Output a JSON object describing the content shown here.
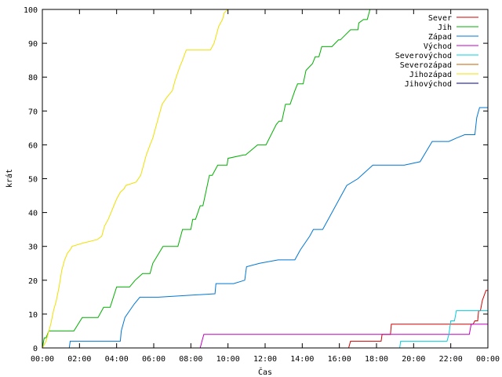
{
  "chart_data": {
    "type": "line",
    "title": "",
    "xlabel": "Čas",
    "ylabel": "krát",
    "xlim": [
      "00:00",
      "24:00"
    ],
    "ylim": [
      0,
      100
    ],
    "grid": false,
    "legend": "top-right",
    "x_ticks": [
      "00:00",
      "02:00",
      "04:00",
      "06:00",
      "08:00",
      "10:00",
      "12:00",
      "14:00",
      "16:00",
      "18:00",
      "20:00",
      "22:00",
      "00:00"
    ],
    "y_ticks": [
      "0",
      "10",
      "20",
      "30",
      "40",
      "50",
      "60",
      "70",
      "80",
      "90",
      "100"
    ],
    "series": [
      {
        "name": "Sever",
        "color": "#d40000",
        "x": [
          0,
          16.5,
          16.6,
          18.25,
          18.3,
          18.75,
          18.8,
          23.2,
          23.3,
          23.45,
          23.5,
          23.6,
          23.7,
          23.9,
          24.0
        ],
        "y": [
          0,
          0,
          2,
          2,
          4,
          4,
          7,
          7,
          8,
          8,
          11,
          11,
          14,
          17,
          17
        ]
      },
      {
        "name": "Jih",
        "color": "#00b000",
        "x": [
          0,
          0.1,
          0.2,
          0.35,
          0.55,
          1.7,
          2.15,
          3.0,
          3.3,
          3.65,
          4.0,
          4.7,
          5.0,
          5.4,
          5.8,
          5.95,
          6.5,
          7.3,
          7.55,
          8.0,
          8.1,
          8.25,
          8.5,
          8.65,
          9.0,
          9.15,
          9.45,
          9.65,
          9.95,
          10.0,
          10.85,
          10.95,
          11.6,
          11.7,
          11.9,
          12.05,
          12.6,
          12.75,
          12.9,
          13.1,
          13.35,
          13.6,
          13.75,
          14.05,
          14.2,
          14.55,
          14.7,
          14.9,
          15.05,
          15.4,
          15.6,
          15.95,
          16.05,
          16.6,
          16.8,
          17.0,
          17.05,
          17.3,
          17.5,
          17.65,
          17.9,
          18.0,
          19.0,
          24.0
        ],
        "y": [
          0,
          3,
          3,
          5,
          5,
          5,
          9,
          9,
          12,
          12,
          18,
          18,
          20,
          22,
          22,
          25,
          30,
          30,
          35,
          35,
          38,
          38,
          42,
          42,
          51,
          51,
          54,
          54,
          54,
          56,
          57,
          57,
          60,
          60,
          60,
          60,
          66,
          67,
          67,
          72,
          72,
          76,
          78,
          78,
          82,
          84,
          86,
          86,
          89,
          89,
          89,
          91,
          91,
          94,
          94,
          94,
          96,
          97,
          97,
          100,
          100,
          100,
          100,
          100
        ]
      },
      {
        "name": "Západ",
        "color": "#0077d4",
        "x": [
          0,
          1.45,
          1.5,
          4.2,
          4.25,
          4.45,
          4.7,
          4.95,
          5.25,
          6.25,
          9.3,
          9.35,
          10.3,
          10.9,
          11.0,
          11.7,
          12.7,
          13.6,
          13.9,
          14.4,
          14.6,
          15.1,
          15.6,
          16.1,
          16.4,
          17.0,
          17.8,
          18.8,
          19.2,
          19.5,
          20.35,
          21.0,
          21.9,
          22.3,
          22.75,
          23.3,
          23.4,
          23.55,
          24.0
        ],
        "y": [
          0,
          0,
          2,
          2,
          5,
          9,
          11,
          13,
          15,
          15,
          16,
          19,
          19,
          20,
          24,
          25,
          26,
          26,
          29,
          33,
          35,
          35,
          40,
          45,
          48,
          50,
          54,
          54,
          54,
          54,
          55,
          61,
          61,
          62,
          63,
          63,
          68,
          71,
          71
        ]
      },
      {
        "name": "Východ",
        "color": "#c000c0",
        "x": [
          0,
          8.5,
          8.6,
          8.7,
          23.0,
          23.1,
          24.0
        ],
        "y": [
          0,
          0,
          2,
          4,
          4,
          7,
          7
        ]
      },
      {
        "name": "Severovýchod",
        "color": "#00d0e0",
        "x": [
          0,
          19.25,
          19.3,
          21.8,
          21.9,
          22.0,
          22.2,
          22.3,
          24.0
        ],
        "y": [
          0,
          0,
          2,
          2,
          4,
          8,
          8,
          11,
          11
        ]
      },
      {
        "name": "Severozápad",
        "color": "#c06000",
        "x": [],
        "y": []
      },
      {
        "name": "Jihozápad",
        "color": "#f0e000",
        "x": [
          0,
          0.1,
          0.2,
          0.3,
          0.45,
          0.6,
          0.75,
          0.9,
          1.05,
          1.2,
          1.35,
          1.5,
          1.6,
          2.2,
          2.95,
          3.2,
          3.35,
          3.55,
          3.7,
          3.85,
          4.0,
          4.2,
          4.4,
          4.5,
          5.05,
          5.3,
          5.45,
          5.6,
          5.8,
          5.95,
          6.2,
          6.45,
          6.7,
          7.0,
          7.15,
          7.4,
          7.55,
          7.75,
          8.0,
          9.05,
          9.25,
          9.35,
          9.5,
          9.7,
          9.8,
          10.0
        ],
        "y": [
          0,
          1,
          2,
          4,
          7,
          11,
          14,
          18,
          23,
          26,
          28,
          29,
          30,
          31,
          32,
          33,
          36,
          38,
          40,
          42,
          44,
          46,
          47,
          48,
          49,
          51,
          54,
          57,
          60,
          62,
          67,
          72,
          74,
          76,
          79,
          83,
          85,
          88,
          88,
          88,
          90,
          92,
          95,
          97,
          99,
          100
        ]
      },
      {
        "name": "Jihovýchod",
        "color": "#000090",
        "x": [],
        "y": []
      }
    ]
  }
}
